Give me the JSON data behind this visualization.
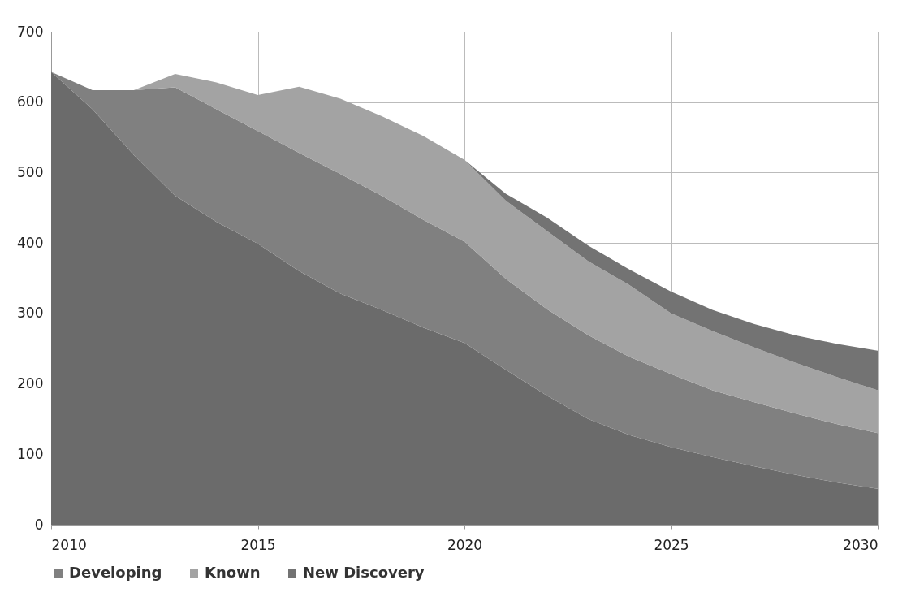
{
  "chart_data": {
    "type": "area",
    "stacked": true,
    "x": [
      2010,
      2011,
      2012,
      2013,
      2014,
      2015,
      2016,
      2017,
      2018,
      2019,
      2020,
      2021,
      2022,
      2023,
      2024,
      2025,
      2026,
      2027,
      2028,
      2029,
      2030
    ],
    "series": [
      {
        "color": "#6b6b6b",
        "values": [
          643,
          590,
          525,
          467,
          430,
          399,
          360,
          328,
          305,
          280,
          258,
          220,
          183,
          150,
          127,
          110,
          96,
          83,
          71,
          60,
          51
        ]
      },
      {
        "name": "Developing",
        "color": "#808080",
        "values": [
          0,
          27,
          92,
          154,
          160,
          160,
          168,
          170,
          162,
          153,
          144,
          129,
          123,
          119,
          111,
          104,
          95,
          91,
          87,
          83,
          79
        ]
      },
      {
        "name": "Known",
        "color": "#a3a3a3",
        "values": [
          0,
          0,
          0,
          19,
          38,
          51,
          94,
          107,
          113,
          119,
          116,
          111,
          111,
          105,
          102,
          86,
          84,
          78,
          72,
          67,
          61
        ]
      },
      {
        "name": "New Discovery",
        "color": "#737373",
        "values": [
          0,
          0,
          0,
          0,
          0,
          0,
          0,
          0,
          0,
          0,
          0,
          10,
          19,
          22,
          22,
          31,
          30,
          33,
          39,
          47,
          56
        ]
      }
    ],
    "xlim": [
      2010,
      2030
    ],
    "xticks": [
      2010,
      2015,
      2020,
      2025,
      2030
    ],
    "ylim": [
      0,
      700
    ],
    "yticks": [
      0,
      100,
      200,
      300,
      400,
      500,
      600,
      700
    ],
    "grid": true,
    "legend": "bottom"
  }
}
